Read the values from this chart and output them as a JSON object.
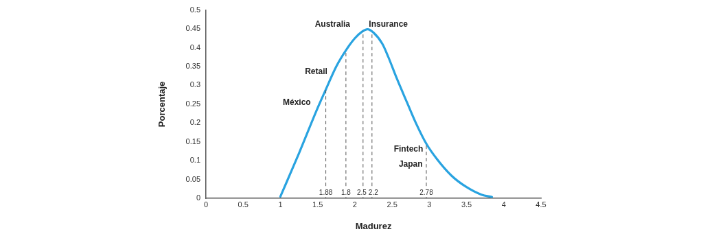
{
  "chart_data": {
    "type": "line",
    "xlabel": "Madurez",
    "ylabel": "Porcentaje",
    "series": [
      {
        "color": "#29a3e0",
        "x": [
          1,
          1.25,
          1.5,
          1.61,
          1.75,
          1.88,
          2.0,
          2.1,
          2.17,
          2.25,
          2.37,
          2.45,
          2.56,
          2.7,
          2.82,
          2.96,
          3.1,
          3.3,
          3.5,
          3.7,
          3.84
        ],
        "values": [
          0.005,
          0.12,
          0.24,
          0.289,
          0.35,
          0.393,
          0.425,
          0.443,
          0.449,
          0.44,
          0.41,
          0.375,
          0.32,
          0.255,
          0.2,
          0.145,
          0.105,
          0.06,
          0.03,
          0.01,
          0.004
        ]
      }
    ],
    "xlim": [
      0,
      4.5
    ],
    "xticks": [
      0,
      0.5,
      1,
      1.5,
      2,
      2.5,
      3,
      3.5,
      4,
      4.5
    ],
    "ylim": [
      0,
      0.5
    ],
    "yticks": [
      0,
      0.05,
      0.1,
      0.15,
      0.2,
      0.25,
      0.3,
      0.35,
      0.4,
      0.45,
      0.5
    ],
    "grid": false,
    "legend": false,
    "marker": "none",
    "line_style": "solid",
    "ref_lines": [
      {
        "axis": "x",
        "value": 1.61,
        "color": "#555555",
        "line_style": "dashed"
      },
      {
        "axis": "x",
        "value": 1.88,
        "color": "#555555",
        "line_style": "dashed"
      },
      {
        "axis": "x",
        "value": 2.11,
        "color": "#555555",
        "line_style": "dashed"
      },
      {
        "axis": "x",
        "value": 2.23,
        "color": "#555555",
        "line_style": "dashed"
      },
      {
        "axis": "x",
        "value": 2.96,
        "color": "#555555",
        "line_style": "dashed"
      }
    ],
    "annotations": [
      "Australia",
      "Insurance",
      "Retail",
      "México",
      "Fintech",
      "Japan",
      {
        "text": "1.88",
        "x": 1.61,
        "y": 0
      },
      {
        "text": "1.8",
        "x": 1.88,
        "y": 0
      },
      {
        "text": "2.5",
        "x": 2.11,
        "y": 0
      },
      {
        "text": "2.2",
        "x": 2.23,
        "y": 0
      },
      {
        "text": "2.78",
        "x": 2.96,
        "y": 0
      }
    ]
  }
}
